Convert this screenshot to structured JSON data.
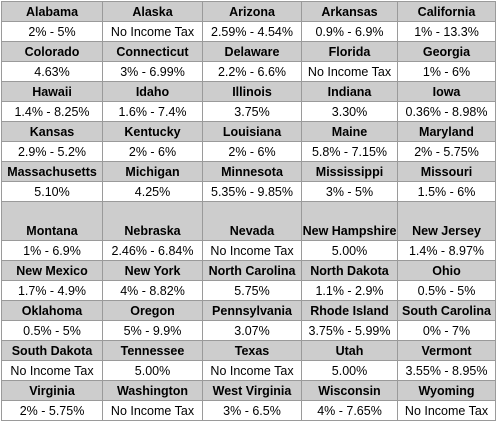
{
  "rows": [
    [
      {
        "state": "Alabama",
        "rate": "2% - 5%"
      },
      {
        "state": "Alaska",
        "rate": "No Income Tax"
      },
      {
        "state": "Arizona",
        "rate": "2.59% - 4.54%"
      },
      {
        "state": "Arkansas",
        "rate": "0.9% - 6.9%"
      },
      {
        "state": "California",
        "rate": "1% - 13.3%"
      }
    ],
    [
      {
        "state": "Colorado",
        "rate": "4.63%"
      },
      {
        "state": "Connecticut",
        "rate": "3% - 6.99%"
      },
      {
        "state": "Delaware",
        "rate": "2.2% - 6.6%"
      },
      {
        "state": "Florida",
        "rate": "No Income Tax"
      },
      {
        "state": "Georgia",
        "rate": "1% - 6%"
      }
    ],
    [
      {
        "state": "Hawaii",
        "rate": "1.4% - 8.25%"
      },
      {
        "state": "Idaho",
        "rate": "1.6% - 7.4%"
      },
      {
        "state": "Illinois",
        "rate": "3.75%"
      },
      {
        "state": "Indiana",
        "rate": "3.30%"
      },
      {
        "state": "Iowa",
        "rate": "0.36% - 8.98%"
      }
    ],
    [
      {
        "state": "Kansas",
        "rate": "2.9% - 5.2%"
      },
      {
        "state": "Kentucky",
        "rate": "2% - 6%"
      },
      {
        "state": "Louisiana",
        "rate": "2% - 6%"
      },
      {
        "state": "Maine",
        "rate": "5.8% - 7.15%"
      },
      {
        "state": "Maryland",
        "rate": "2% - 5.75%"
      }
    ],
    [
      {
        "state": "Massachusetts",
        "rate": "5.10%"
      },
      {
        "state": "Michigan",
        "rate": "4.25%"
      },
      {
        "state": "Minnesota",
        "rate": "5.35% - 9.85%"
      },
      {
        "state": "Mississippi",
        "rate": "3% - 5%"
      },
      {
        "state": "Missouri",
        "rate": "1.5% - 6%"
      }
    ],
    [
      {
        "state": "Montana",
        "rate": "1% - 6.9%"
      },
      {
        "state": "Nebraska",
        "rate": "2.46% - 6.84%"
      },
      {
        "state": "Nevada",
        "rate": "No Income Tax"
      },
      {
        "state": "New Hampshire",
        "rate": "5.00%"
      },
      {
        "state": "New Jersey",
        "rate": "1.4% - 8.97%"
      }
    ],
    [
      {
        "state": "New Mexico",
        "rate": "1.7% - 4.9%"
      },
      {
        "state": "New York",
        "rate": "4% - 8.82%"
      },
      {
        "state": "North Carolina",
        "rate": "5.75%"
      },
      {
        "state": "North Dakota",
        "rate": "1.1% - 2.9%"
      },
      {
        "state": "Ohio",
        "rate": "0.5% - 5%"
      }
    ],
    [
      {
        "state": "Oklahoma",
        "rate": "0.5% - 5%"
      },
      {
        "state": "Oregon",
        "rate": "5% - 9.9%"
      },
      {
        "state": "Pennsylvania",
        "rate": "3.07%"
      },
      {
        "state": "Rhode Island",
        "rate": "3.75% - 5.99%"
      },
      {
        "state": "South Carolina",
        "rate": "0% - 7%"
      }
    ],
    [
      {
        "state": "South Dakota",
        "rate": "No Income Tax"
      },
      {
        "state": "Tennessee",
        "rate": "5.00%"
      },
      {
        "state": "Texas",
        "rate": "No Income Tax"
      },
      {
        "state": "Utah",
        "rate": "5.00%"
      },
      {
        "state": "Vermont",
        "rate": "3.55% - 8.95%"
      }
    ],
    [
      {
        "state": "Virginia",
        "rate": "2% - 5.75%"
      },
      {
        "state": "Washington",
        "rate": "No Income Tax"
      },
      {
        "state": "West Virginia",
        "rate": "3% - 6.5%"
      },
      {
        "state": "Wisconsin",
        "rate": "4% - 7.65%"
      },
      {
        "state": "Wyoming",
        "rate": "No Income Tax"
      }
    ]
  ]
}
